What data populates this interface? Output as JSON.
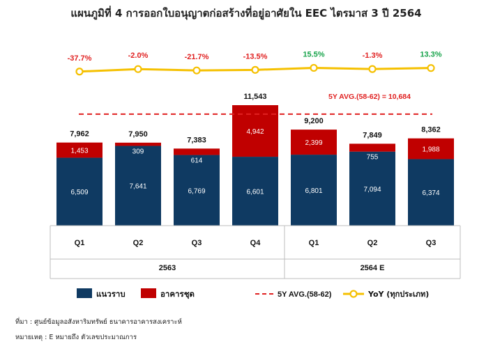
{
  "chart_data": {
    "type": "bar",
    "title": "แผนภูมิที่ 4 การออกใบอนุญาตก่อสร้างที่อยู่อาศัยใน EEC ไตรมาส 3 ปี 2564",
    "categories": [
      "Q1",
      "Q2",
      "Q3",
      "Q4",
      "Q1",
      "Q2",
      "Q3"
    ],
    "groups": [
      {
        "label": "2563",
        "count": 4
      },
      {
        "label": "2564 E",
        "count": 3
      }
    ],
    "totals": [
      "7,962",
      "7,950",
      "7,383",
      "11,543",
      "9,200",
      "7,849",
      "8,362"
    ],
    "series": [
      {
        "name": "แนวราบ",
        "color": "#0f3a62",
        "values": [
          6509,
          7641,
          6769,
          6601,
          6801,
          7094,
          6374
        ]
      },
      {
        "name": "อาคารชุด",
        "color": "#c00000",
        "values": [
          1453,
          309,
          614,
          4942,
          2399,
          755,
          1988
        ]
      }
    ],
    "avg": {
      "name": "5Y AVG.(58-62)",
      "label": "5Y AVG.(58-62) =   10,684",
      "value": 10684,
      "color": "#e02020"
    },
    "yoy": {
      "name": "YoY (ทุกประเภท)",
      "color": "#f5c000",
      "labels": [
        "-37.7%",
        "-2.0%",
        "-21.7%",
        "-13.5%",
        "15.5%",
        "-1.3%",
        "13.3%"
      ],
      "values": [
        -37.7,
        -2.0,
        -21.7,
        -13.5,
        15.5,
        -1.3,
        13.3
      ],
      "neg_color": "#e02020",
      "pos_color": "#17a34a"
    },
    "ylim": [
      0,
      11543
    ]
  },
  "notes": {
    "source": "ที่มา : ศูนย์ข้อมูลอสังหาริมทรัพย์ ธนาคารอาคารสงเคราะห์",
    "remark": "หมายเหตุ : E หมายถึง ตัวเลขประมาณการ"
  }
}
